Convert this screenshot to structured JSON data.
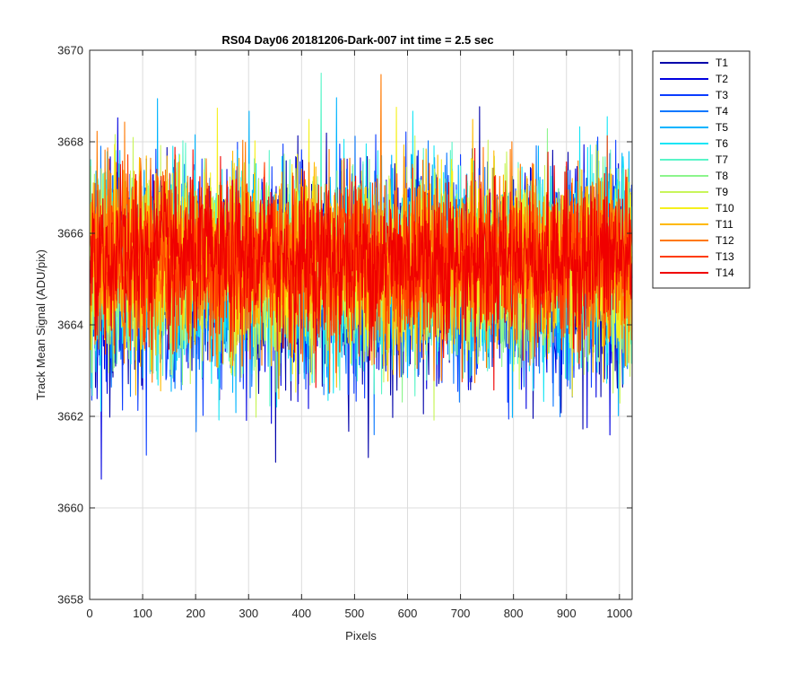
{
  "chart_data": {
    "type": "line",
    "title": "RS04 Day06 20181206-Dark-007 int time = 2.5 sec",
    "xlabel": "Pixels",
    "ylabel": "Track Mean Signal (ADU/pix)",
    "xlim": [
      0,
      1024
    ],
    "ylim": [
      3658,
      3670
    ],
    "xticks": [
      0,
      100,
      200,
      300,
      400,
      500,
      600,
      700,
      800,
      900,
      1000
    ],
    "yticks": [
      3658,
      3660,
      3662,
      3664,
      3666,
      3668,
      3670
    ],
    "grid": true,
    "legend_position": "outside-top-right",
    "pixel_count": 1024,
    "series": [
      {
        "name": "T1",
        "color": "#0000AA",
        "mean": 3665.0,
        "spread": 1.15
      },
      {
        "name": "T2",
        "color": "#0000E0",
        "mean": 3665.05,
        "spread": 1.1
      },
      {
        "name": "T3",
        "color": "#0A3CFF",
        "mean": 3665.1,
        "spread": 1.05
      },
      {
        "name": "T4",
        "color": "#0A78FF",
        "mean": 3665.15,
        "spread": 1.05
      },
      {
        "name": "T5",
        "color": "#00B4FF",
        "mean": 3665.2,
        "spread": 1.05
      },
      {
        "name": "T6",
        "color": "#17E5F5",
        "mean": 3665.2,
        "spread": 1.05
      },
      {
        "name": "T7",
        "color": "#5AF5C8",
        "mean": 3665.25,
        "spread": 1.0
      },
      {
        "name": "T8",
        "color": "#8CF58C",
        "mean": 3665.25,
        "spread": 1.0
      },
      {
        "name": "T9",
        "color": "#C8F55A",
        "mean": 3665.3,
        "spread": 1.0
      },
      {
        "name": "T10",
        "color": "#F5F01E",
        "mean": 3665.35,
        "spread": 0.95
      },
      {
        "name": "T11",
        "color": "#FFB900",
        "mean": 3665.35,
        "spread": 0.95
      },
      {
        "name": "T12",
        "color": "#FF7800",
        "mean": 3665.4,
        "spread": 0.95
      },
      {
        "name": "T13",
        "color": "#FF3C00",
        "mean": 3665.4,
        "spread": 0.9
      },
      {
        "name": "T14",
        "color": "#F00000",
        "mean": 3665.45,
        "spread": 0.85
      }
    ]
  }
}
